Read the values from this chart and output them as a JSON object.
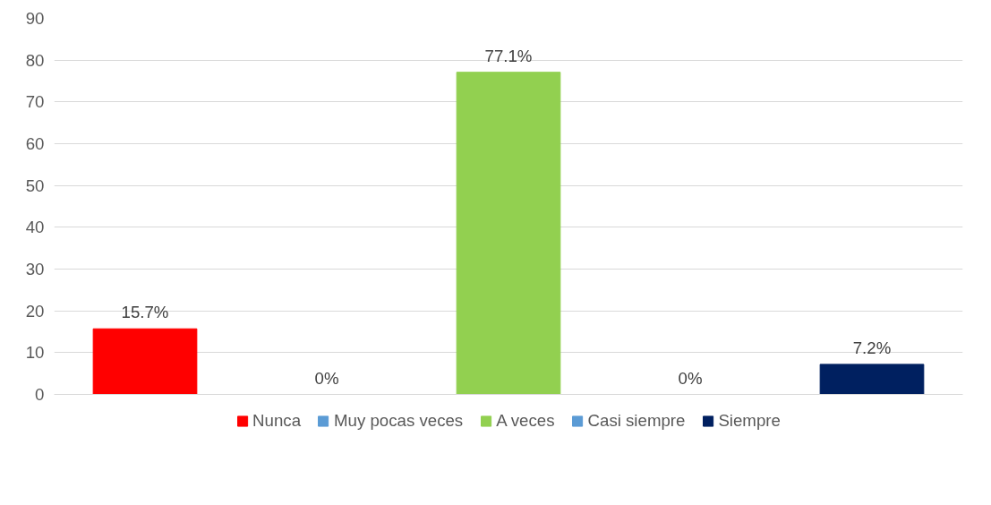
{
  "chart_data": {
    "type": "bar",
    "categories": [
      null,
      null,
      null,
      null,
      null
    ],
    "series": [
      {
        "name": "Nunca",
        "color": "#ff0000",
        "values": [
          15.7,
          null,
          null,
          null,
          null
        ],
        "value_labels": [
          "15.7%",
          null,
          null,
          null,
          null
        ]
      },
      {
        "name": "Muy pocas veces",
        "color": "#5b9bd5",
        "values": [
          null,
          0,
          null,
          null,
          null
        ],
        "value_labels": [
          null,
          "0%",
          null,
          null,
          null
        ]
      },
      {
        "name": "A veces",
        "color": "#92d050",
        "values": [
          null,
          null,
          77.1,
          null,
          null
        ],
        "value_labels": [
          null,
          null,
          "77.1%",
          null,
          null
        ]
      },
      {
        "name": "Casi siempre",
        "color": "#5b9bd5",
        "values": [
          null,
          null,
          null,
          0,
          null
        ],
        "value_labels": [
          null,
          null,
          null,
          "0%",
          null
        ]
      },
      {
        "name": "Siempre",
        "color": "#002060",
        "values": [
          null,
          null,
          null,
          null,
          7.2
        ],
        "value_labels": [
          null,
          null,
          null,
          null,
          "7.2%"
        ]
      }
    ],
    "ylim": [
      0,
      90
    ],
    "yticks": [
      0,
      10,
      20,
      30,
      40,
      50,
      60,
      70,
      80,
      90
    ],
    "grid": "y",
    "legend": "bottom"
  }
}
